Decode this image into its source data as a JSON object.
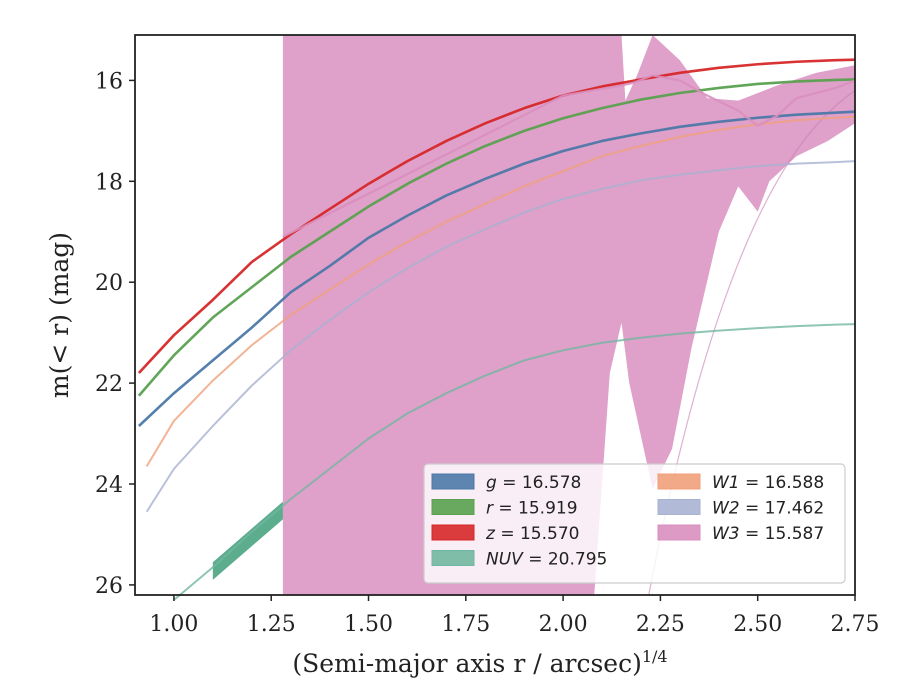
{
  "chart_data": {
    "type": "line",
    "xlabel": "(Semi-major axis r / arcsec)",
    "xlabel_exponent": "1/4",
    "ylabel": "m(< r) (mag)",
    "xlim": [
      0.9,
      2.75
    ],
    "ylim": [
      26.2,
      15.1
    ],
    "y_inverted": true,
    "grid": false,
    "legend_placement": "lower right",
    "x_ticks": [
      "1.00",
      "1.25",
      "1.50",
      "1.75",
      "2.00",
      "2.25",
      "2.50",
      "2.75"
    ],
    "y_ticks": [
      "16",
      "18",
      "20",
      "22",
      "24",
      "26"
    ],
    "series": [
      {
        "name": "g",
        "legend_label": "g = 16.578",
        "color": "#4c78a8",
        "x": [
          0.91,
          1.0,
          1.1,
          1.2,
          1.3,
          1.4,
          1.5,
          1.6,
          1.7,
          1.8,
          1.9,
          2.0,
          2.1,
          2.2,
          2.3,
          2.4,
          2.5,
          2.6,
          2.7,
          2.75
        ],
        "y": [
          22.85,
          22.2,
          21.55,
          20.9,
          20.2,
          19.68,
          19.12,
          18.68,
          18.28,
          17.95,
          17.65,
          17.4,
          17.2,
          17.05,
          16.92,
          16.82,
          16.74,
          16.68,
          16.64,
          16.62
        ]
      },
      {
        "name": "r",
        "legend_label": "r = 15.919",
        "color": "#59a14f",
        "x": [
          0.91,
          1.0,
          1.1,
          1.2,
          1.3,
          1.4,
          1.5,
          1.6,
          1.7,
          1.8,
          1.9,
          2.0,
          2.1,
          2.2,
          2.3,
          2.4,
          2.5,
          2.6,
          2.7,
          2.75
        ],
        "y": [
          22.25,
          21.45,
          20.7,
          20.1,
          19.5,
          19.0,
          18.5,
          18.05,
          17.65,
          17.3,
          17.0,
          16.75,
          16.55,
          16.38,
          16.25,
          16.15,
          16.07,
          16.02,
          15.99,
          15.98
        ]
      },
      {
        "name": "z",
        "legend_label": "z = 15.570",
        "color": "#d62728",
        "x": [
          0.91,
          1.0,
          1.1,
          1.2,
          1.3,
          1.4,
          1.5,
          1.6,
          1.7,
          1.8,
          1.9,
          2.0,
          2.1,
          2.2,
          2.3,
          2.4,
          2.5,
          2.6,
          2.7,
          2.75
        ],
        "y": [
          21.8,
          21.05,
          20.35,
          19.6,
          19.05,
          18.55,
          18.05,
          17.6,
          17.2,
          16.85,
          16.55,
          16.3,
          16.12,
          15.98,
          15.85,
          15.75,
          15.68,
          15.63,
          15.6,
          15.59
        ]
      },
      {
        "name": "NUV",
        "legend_label": "NUV = 20.795",
        "color": "#72b7a1",
        "x": [
          1.0,
          1.1,
          1.2,
          1.3,
          1.4,
          1.5,
          1.6,
          1.7,
          1.8,
          1.9,
          2.0,
          2.1,
          2.2,
          2.3,
          2.4,
          2.5,
          2.6,
          2.7,
          2.75
        ],
        "y": [
          26.3,
          25.65,
          24.95,
          24.3,
          23.7,
          23.1,
          22.6,
          22.2,
          21.85,
          21.55,
          21.35,
          21.2,
          21.1,
          21.02,
          20.96,
          20.91,
          20.87,
          20.84,
          20.83
        ]
      },
      {
        "name": "W1",
        "legend_label": "W1 = 16.588",
        "color": "#f0a07a",
        "x": [
          0.93,
          1.0,
          1.1,
          1.2,
          1.3,
          1.4,
          1.5,
          1.6,
          1.7,
          1.8,
          1.9,
          2.0,
          2.1,
          2.2,
          2.3,
          2.4,
          2.5,
          2.6,
          2.7,
          2.75
        ],
        "y": [
          23.65,
          22.75,
          21.95,
          21.25,
          20.65,
          20.15,
          19.65,
          19.2,
          18.8,
          18.45,
          18.1,
          17.8,
          17.5,
          17.3,
          17.12,
          16.98,
          16.87,
          16.79,
          16.74,
          16.72
        ]
      },
      {
        "name": "W2",
        "legend_label": "W2 = 17.462",
        "color": "#a8b2d1",
        "x": [
          0.93,
          1.0,
          1.1,
          1.2,
          1.3,
          1.4,
          1.5,
          1.6,
          1.7,
          1.8,
          1.9,
          2.0,
          2.1,
          2.2,
          2.3,
          2.4,
          2.5,
          2.6,
          2.7,
          2.75
        ],
        "y": [
          24.55,
          23.7,
          22.85,
          22.05,
          21.35,
          20.75,
          20.2,
          19.72,
          19.3,
          18.95,
          18.62,
          18.35,
          18.15,
          17.98,
          17.87,
          17.78,
          17.7,
          17.65,
          17.62,
          17.6
        ]
      },
      {
        "name": "W3",
        "legend_label": "W3 = 15.587",
        "color": "#d98fbf",
        "x": [
          1.28,
          2.0,
          2.15,
          2.18,
          2.23,
          2.3,
          2.37,
          2.45,
          2.5,
          2.55,
          2.6,
          2.7,
          2.75
        ],
        "y": [
          19.1,
          16.3,
          16.1,
          16.05,
          15.9,
          16.0,
          16.3,
          16.6,
          16.9,
          16.7,
          16.35,
          16.15,
          16.0
        ]
      }
    ]
  }
}
